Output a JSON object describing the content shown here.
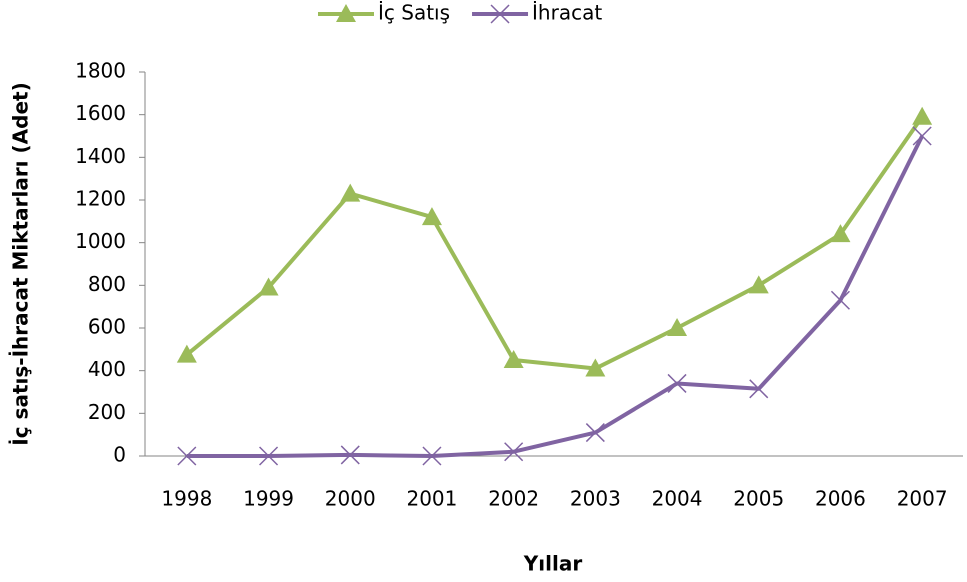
{
  "chart_data": {
    "type": "line",
    "y_axis_label": "İç satış-İhracat Miktarları (Adet)",
    "x_axis_label": "Yıllar",
    "categories": [
      "1998",
      "1999",
      "2000",
      "2001",
      "2002",
      "2003",
      "2004",
      "2005",
      "2006",
      "2007"
    ],
    "series": [
      {
        "name": "İç Satış",
        "color": "#9bbb59",
        "marker": "triangle",
        "values": [
          475,
          790,
          1230,
          1120,
          450,
          410,
          600,
          800,
          1040,
          1590
        ]
      },
      {
        "name": "İhracat",
        "color": "#8064a2",
        "marker": "x",
        "values": [
          0,
          0,
          5,
          0,
          20,
          110,
          340,
          315,
          730,
          1500
        ]
      }
    ],
    "ylim": [
      0,
      1800
    ],
    "yticks": [
      0,
      200,
      400,
      600,
      800,
      1000,
      1200,
      1400,
      1600,
      1800
    ],
    "grid": false,
    "legend": "top"
  }
}
